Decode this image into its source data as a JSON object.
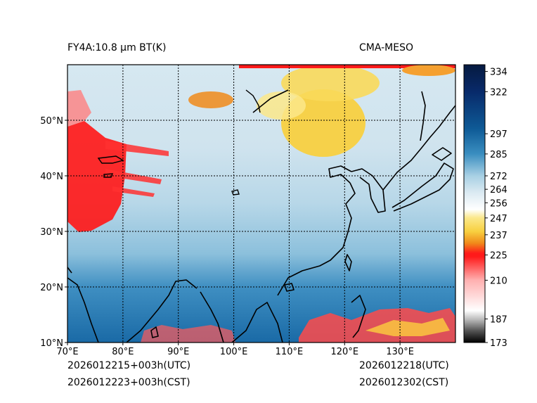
{
  "header": {
    "product_title": "FY4A:10.8 µm BT(K)",
    "model_name": "CMA-MESO"
  },
  "footer": {
    "init_utc": "2026012215+003h(UTC)",
    "init_cst": "2026012223+003h(CST)",
    "valid_utc": "2026012218(UTC)",
    "valid_cst": "2026012302(CST)"
  },
  "map": {
    "lon_labels": [
      "70°E",
      "80°E",
      "90°E",
      "100°E",
      "110°E",
      "120°E",
      "130°E"
    ],
    "lat_labels": [
      "10°N",
      "20°N",
      "30°N",
      "40°N",
      "50°N"
    ],
    "lon_values": [
      70,
      80,
      90,
      100,
      110,
      120,
      130
    ],
    "lat_values": [
      10,
      20,
      30,
      40,
      50
    ],
    "lon_range": [
      70,
      140
    ],
    "lat_range": [
      10,
      60
    ]
  },
  "colorbar": {
    "units": "K",
    "range": [
      173,
      338
    ],
    "tick_values": [
      173,
      187,
      210,
      225,
      237,
      247,
      256,
      264,
      272,
      285,
      297,
      322,
      334
    ],
    "tick_labels": [
      "173",
      "187",
      "210",
      "225",
      "237",
      "247",
      "256",
      "264",
      "272",
      "285",
      "297",
      "322",
      "334"
    ],
    "colors": {
      "black": "#000000",
      "gray": "#bfbfbf",
      "white": "#ffffff",
      "pink": "#ffb0b0",
      "red": "#ff1a1a",
      "orange": "#f08a1a",
      "yellow": "#f8d040",
      "light_yellow": "#fbe88a",
      "pale_blue": "#dbeaf2",
      "light_blue": "#a8d0e4",
      "mid_blue": "#3a8ec0",
      "deep_blue": "#0e5a96",
      "navy": "#082a6a",
      "dark_navy": "#061a40"
    }
  }
}
